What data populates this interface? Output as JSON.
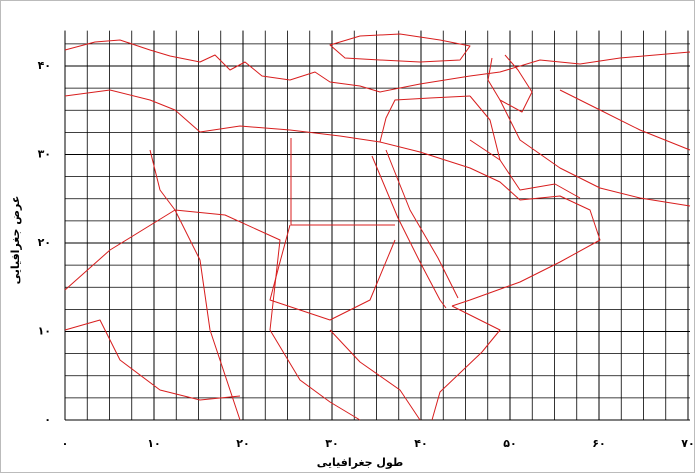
{
  "chart_data": {
    "type": "map",
    "x_label": "طول جغرافیایی",
    "y_label": "عرض جغرافیایی",
    "xlim": [
      0,
      70
    ],
    "ylim": [
      0,
      44
    ],
    "xticks": [
      {
        "value": 0,
        "label": "۰"
      },
      {
        "value": 10,
        "label": "۱۰"
      },
      {
        "value": 20,
        "label": "۲۰"
      },
      {
        "value": 30,
        "label": "۳۰"
      },
      {
        "value": 40,
        "label": "۴۰"
      },
      {
        "value": 50,
        "label": "۵۰"
      },
      {
        "value": 60,
        "label": "۶۰"
      },
      {
        "value": 70,
        "label": "۷۰"
      }
    ],
    "yticks": [
      {
        "value": 0,
        "label": "۰"
      },
      {
        "value": 10,
        "label": "۱۰"
      },
      {
        "value": 20,
        "label": "۲۰"
      },
      {
        "value": 30,
        "label": "۳۰"
      },
      {
        "value": 40,
        "label": "۴۰"
      }
    ],
    "grid": true,
    "color": "#d81e1e"
  }
}
